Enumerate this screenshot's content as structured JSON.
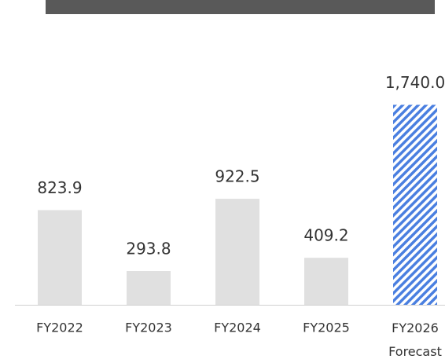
{
  "chart_data": {
    "type": "bar",
    "categories": [
      "FY2022",
      "FY2023",
      "FY2024",
      "FY2025",
      "FY2026 Forecast"
    ],
    "values": [
      823.9,
      293.8,
      922.5,
      409.2,
      1740.0
    ],
    "value_labels": [
      "823.9",
      "293.8",
      "922.5",
      "409.2",
      "1,740.0"
    ],
    "color": "#e0e0e0",
    "forecast_color": "#4a7fe0",
    "ylim": [
      0,
      2000
    ]
  }
}
